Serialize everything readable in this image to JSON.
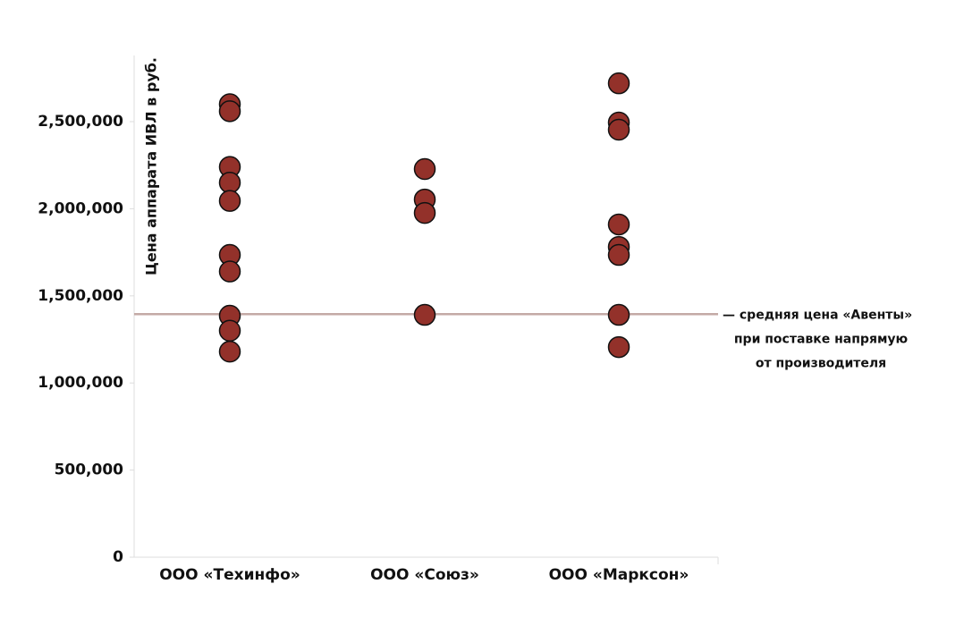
{
  "chart_data": {
    "type": "strip",
    "y_axis_label": "Цена аппарата ИВЛ в руб.",
    "categories": [
      "ООО «Техинфо»",
      "ООО «Союз»",
      "ООО «Марксон»"
    ],
    "values": [
      [
        2600000,
        2560000,
        2240000,
        2150000,
        2045000,
        1735000,
        1640000,
        1386000,
        1300000,
        1180000
      ],
      [
        2228000,
        2053000,
        1976000,
        1391000
      ],
      [
        2720000,
        2495000,
        2454000,
        1910000,
        1781000,
        1735000,
        1391000,
        1206000
      ]
    ],
    "color": "#93312a",
    "ylim": [
      0,
      2880000
    ],
    "yticks": [
      0,
      {
        "value": 500000,
        "label": "500,000"
      },
      {
        "value": 1000000,
        "label": "1,000,000"
      },
      {
        "value": 1500000,
        "label": "1,500,000"
      },
      {
        "value": 2000000,
        "label": "2,000,000"
      },
      {
        "value": 2500000,
        "label": "2,500,000"
      }
    ],
    "reference_line": {
      "value": 1395000,
      "color": "#c4aaa6",
      "label": [
        "— средняя цена «Авенты»",
        "при поставке напрямую",
        "от производителя"
      ]
    }
  }
}
